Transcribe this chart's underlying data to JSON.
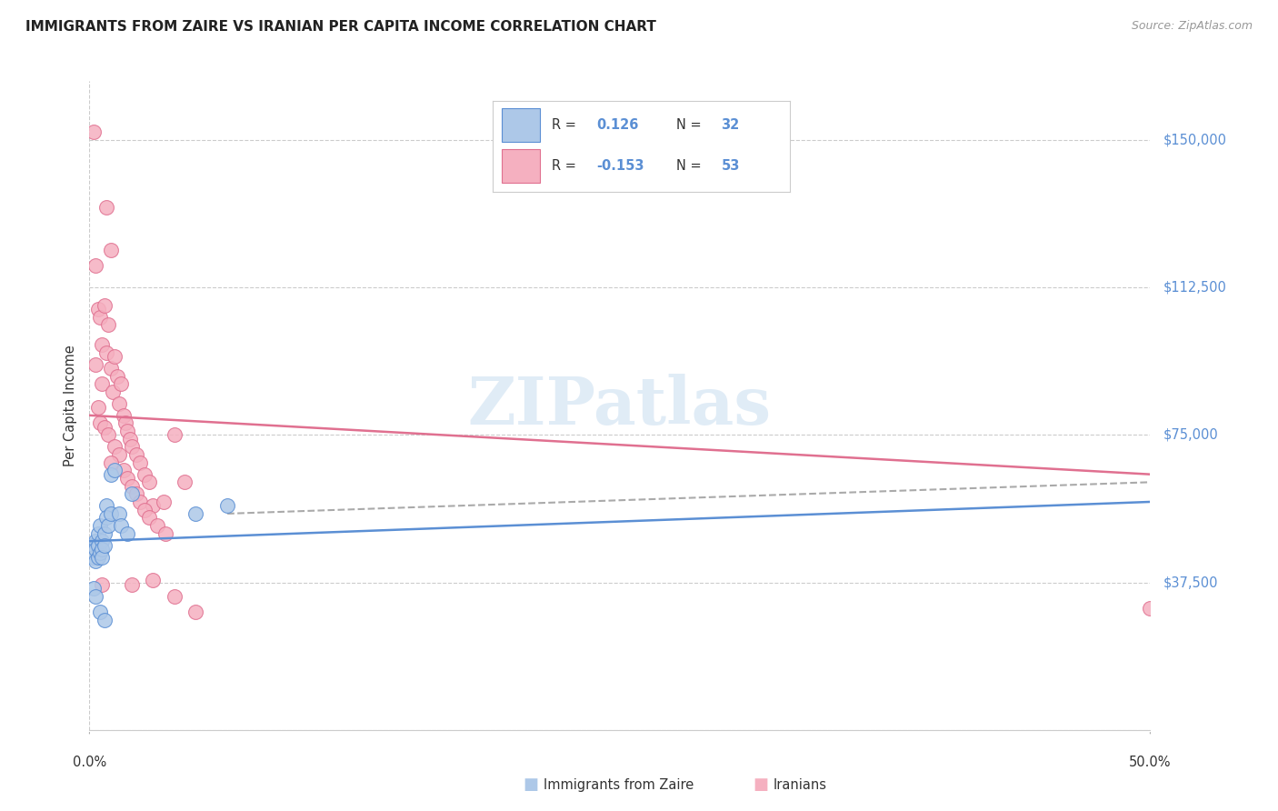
{
  "title": "IMMIGRANTS FROM ZAIRE VS IRANIAN PER CAPITA INCOME CORRELATION CHART",
  "source": "Source: ZipAtlas.com",
  "ylabel": "Per Capita Income",
  "yticks": [
    0,
    37500,
    75000,
    112500,
    150000
  ],
  "ytick_labels": [
    "",
    "$37,500",
    "$75,000",
    "$112,500",
    "$150,000"
  ],
  "xlim": [
    0.0,
    0.5
  ],
  "ylim": [
    0,
    165000
  ],
  "legend_labels": [
    "Immigrants from Zaire",
    "Iranians"
  ],
  "blue_R": "0.126",
  "blue_N": "32",
  "pink_R": "-0.153",
  "pink_N": "53",
  "blue_color": "#adc8e8",
  "pink_color": "#f5b0c0",
  "blue_edge_color": "#5b8fd4",
  "pink_edge_color": "#e07090",
  "blue_line_color": "#5b8fd4",
  "pink_line_color": "#e07090",
  "blue_line": [
    [
      0.0,
      48000
    ],
    [
      0.5,
      58000
    ]
  ],
  "pink_line": [
    [
      0.0,
      80000
    ],
    [
      0.5,
      65000
    ]
  ],
  "gray_dash_line": [
    [
      0.065,
      55000
    ],
    [
      0.5,
      63000
    ]
  ],
  "blue_scatter": [
    [
      0.001,
      47000
    ],
    [
      0.002,
      46500
    ],
    [
      0.002,
      44000
    ],
    [
      0.003,
      48000
    ],
    [
      0.003,
      46000
    ],
    [
      0.003,
      43000
    ],
    [
      0.004,
      50000
    ],
    [
      0.004,
      47000
    ],
    [
      0.004,
      44000
    ],
    [
      0.005,
      52000
    ],
    [
      0.005,
      45000
    ],
    [
      0.006,
      48000
    ],
    [
      0.006,
      46000
    ],
    [
      0.006,
      44000
    ],
    [
      0.007,
      50000
    ],
    [
      0.007,
      47000
    ],
    [
      0.008,
      57000
    ],
    [
      0.008,
      54000
    ],
    [
      0.009,
      52000
    ],
    [
      0.01,
      65000
    ],
    [
      0.01,
      55000
    ],
    [
      0.012,
      66000
    ],
    [
      0.014,
      55000
    ],
    [
      0.015,
      52000
    ],
    [
      0.018,
      50000
    ],
    [
      0.02,
      60000
    ],
    [
      0.002,
      36000
    ],
    [
      0.003,
      34000
    ],
    [
      0.005,
      30000
    ],
    [
      0.007,
      28000
    ],
    [
      0.05,
      55000
    ],
    [
      0.065,
      57000
    ]
  ],
  "pink_scatter": [
    [
      0.002,
      152000
    ],
    [
      0.008,
      133000
    ],
    [
      0.003,
      118000
    ],
    [
      0.01,
      122000
    ],
    [
      0.004,
      107000
    ],
    [
      0.005,
      105000
    ],
    [
      0.007,
      108000
    ],
    [
      0.009,
      103000
    ],
    [
      0.006,
      98000
    ],
    [
      0.008,
      96000
    ],
    [
      0.003,
      93000
    ],
    [
      0.01,
      92000
    ],
    [
      0.012,
      95000
    ],
    [
      0.013,
      90000
    ],
    [
      0.006,
      88000
    ],
    [
      0.011,
      86000
    ],
    [
      0.014,
      83000
    ],
    [
      0.015,
      88000
    ],
    [
      0.004,
      82000
    ],
    [
      0.016,
      80000
    ],
    [
      0.005,
      78000
    ],
    [
      0.017,
      78000
    ],
    [
      0.007,
      77000
    ],
    [
      0.018,
      76000
    ],
    [
      0.009,
      75000
    ],
    [
      0.019,
      74000
    ],
    [
      0.012,
      72000
    ],
    [
      0.02,
      72000
    ],
    [
      0.014,
      70000
    ],
    [
      0.022,
      70000
    ],
    [
      0.01,
      68000
    ],
    [
      0.024,
      68000
    ],
    [
      0.016,
      66000
    ],
    [
      0.026,
      65000
    ],
    [
      0.018,
      64000
    ],
    [
      0.028,
      63000
    ],
    [
      0.02,
      62000
    ],
    [
      0.022,
      60000
    ],
    [
      0.024,
      58000
    ],
    [
      0.03,
      57000
    ],
    [
      0.026,
      56000
    ],
    [
      0.035,
      58000
    ],
    [
      0.028,
      54000
    ],
    [
      0.04,
      75000
    ],
    [
      0.032,
      52000
    ],
    [
      0.045,
      63000
    ],
    [
      0.036,
      50000
    ],
    [
      0.006,
      37000
    ],
    [
      0.02,
      37000
    ],
    [
      0.03,
      38000
    ],
    [
      0.04,
      34000
    ],
    [
      0.05,
      30000
    ],
    [
      0.5,
      31000
    ]
  ],
  "background_color": "#ffffff",
  "grid_color": "#cccccc"
}
